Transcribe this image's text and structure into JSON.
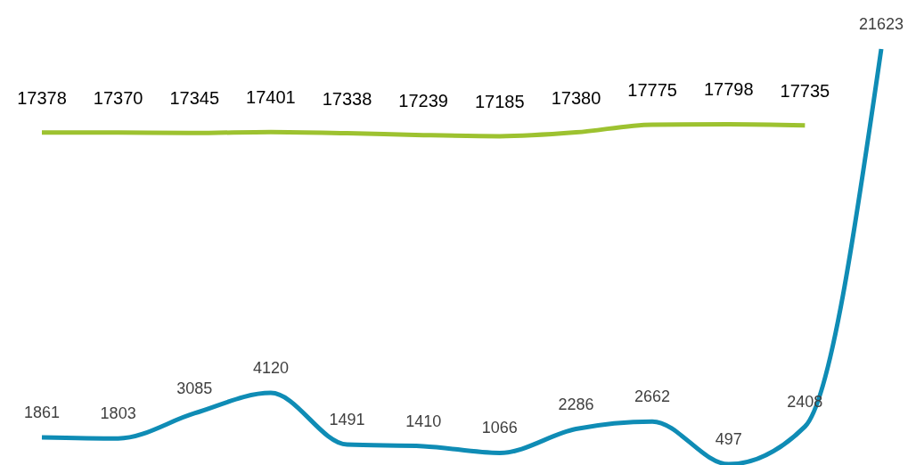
{
  "chart_data": {
    "type": "line",
    "categories": [
      null,
      null,
      null,
      null,
      null,
      null,
      null,
      null,
      null,
      null,
      null,
      null
    ],
    "series": [
      {
        "color": "#9dc230",
        "values": [
          17378,
          17370,
          17345,
          17401,
          17338,
          17239,
          17185,
          17380,
          17775,
          17798,
          17735,
          null
        ]
      },
      {
        "color": "#0f8cb5",
        "values": [
          1861,
          1803,
          3085,
          4120,
          1491,
          1410,
          1066,
          2286,
          2662,
          497,
          2408,
          21623
        ]
      }
    ],
    "data_labels": true,
    "marker": "none",
    "line_style": "solid"
  }
}
